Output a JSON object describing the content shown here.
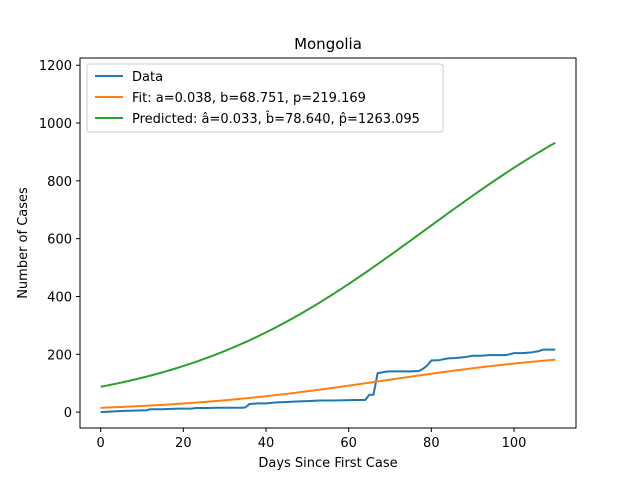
{
  "chart_data": {
    "type": "line",
    "title": "Mongolia",
    "xlabel": "Days Since First Case",
    "ylabel": "Number of Cases",
    "xlim": [
      -5,
      115
    ],
    "ylim": [
      -55,
      1225
    ],
    "xticks": [
      0,
      20,
      40,
      60,
      80,
      100
    ],
    "yticks": [
      0,
      200,
      400,
      600,
      800,
      1000,
      1200
    ],
    "grid": false,
    "legend_position": "upper-left",
    "series": [
      {
        "name": "Data",
        "color": "#1f77b4",
        "x": [
          0,
          5,
          8,
          10,
          11,
          12,
          15,
          17,
          19,
          21,
          22,
          23,
          26,
          28,
          30,
          32,
          34,
          35,
          36,
          38,
          40,
          42,
          45,
          48,
          50,
          53,
          56,
          59,
          62,
          64,
          65,
          66,
          67,
          68,
          69,
          70,
          72,
          75,
          77,
          78,
          79,
          80,
          81,
          82,
          84,
          86,
          88,
          90,
          92,
          94,
          96,
          98,
          100,
          102,
          104,
          106,
          107,
          108,
          109,
          110
        ],
        "y": [
          0,
          4,
          5,
          6,
          6,
          10,
          10,
          11,
          12,
          12,
          12,
          14,
          14,
          15,
          15,
          15,
          15,
          16,
          28,
          30,
          30,
          33,
          35,
          37,
          38,
          40,
          40,
          41,
          42,
          42,
          60,
          60,
          135,
          137,
          140,
          141,
          141,
          141,
          142,
          150,
          161,
          179,
          179,
          180,
          186,
          187,
          190,
          195,
          195,
          197,
          197,
          197,
          204,
          204,
          206,
          211,
          216,
          216,
          216,
          216
        ]
      },
      {
        "name": "Fit: a=0.038, b=68.751, p=219.169",
        "color": "#ff7f0e",
        "function": "logistic",
        "params": {
          "a": 0.038,
          "b": 68.751,
          "p": 219.169
        },
        "x_range": [
          0,
          110
        ]
      },
      {
        "name": "Predicted: â=0.033, b̂=78.640, p̂=1263.095",
        "color": "#2ca02c",
        "function": "logistic",
        "params": {
          "a": 0.033,
          "b": 78.64,
          "p": 1263.095
        },
        "x_range": [
          0,
          110
        ]
      }
    ]
  }
}
